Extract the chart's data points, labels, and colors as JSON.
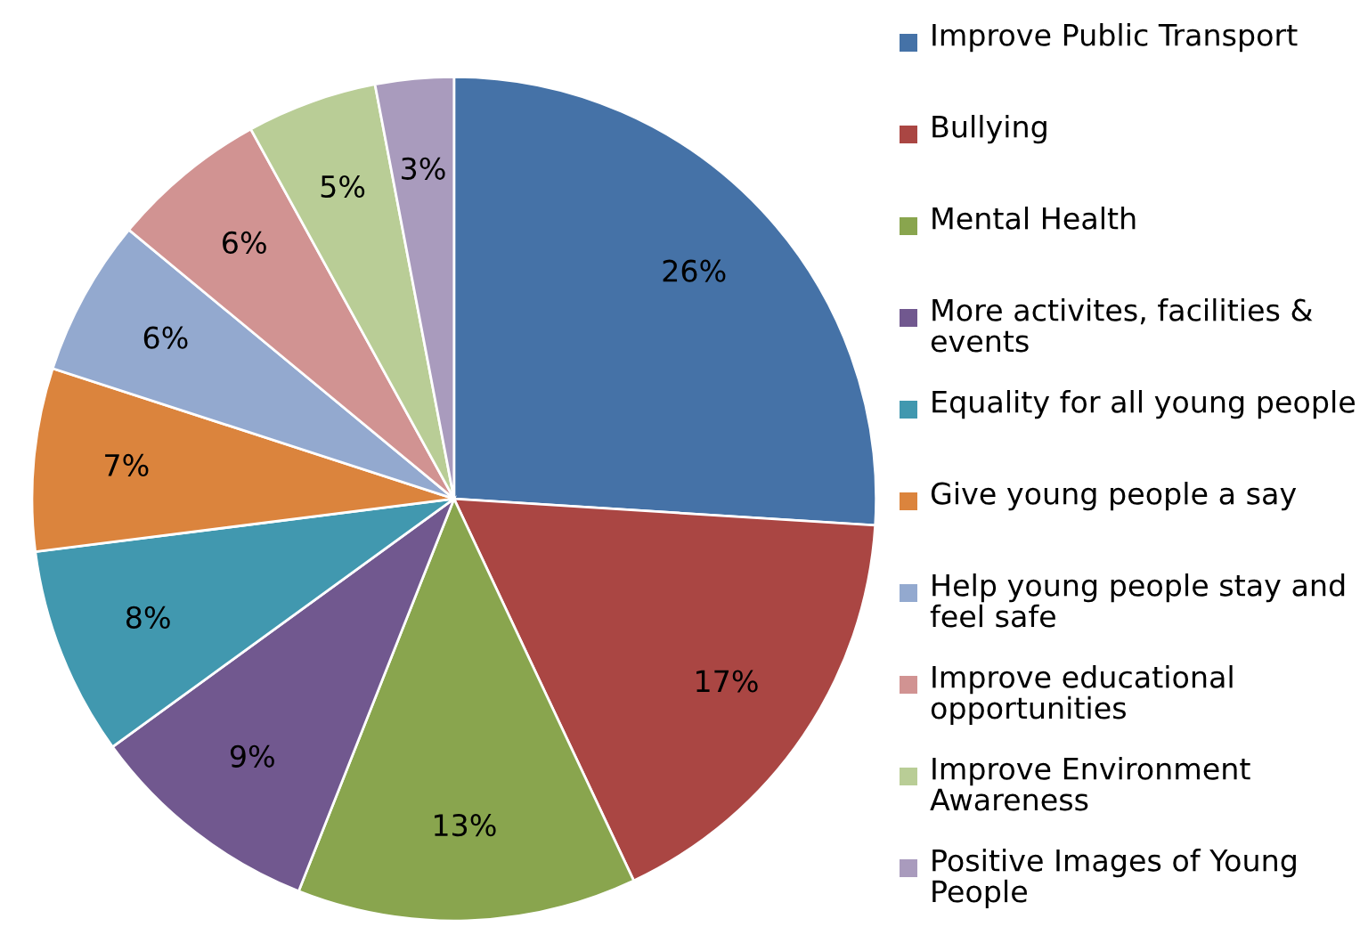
{
  "chart_data": {
    "type": "pie",
    "categories": [
      "Improve Public Transport",
      "Bullying",
      "Mental Health",
      "More activites, facilities & events",
      "Equality for all young people",
      "Give young people a say",
      "Help young people stay and feel safe",
      "Improve educational opportunities",
      "Improve Environment Awareness",
      "Positive Images of Young People"
    ],
    "values": [
      26,
      17,
      13,
      9,
      8,
      7,
      6,
      6,
      5,
      3
    ],
    "colors": [
      "#4572a7",
      "#aa4643",
      "#89a54e",
      "#71588f",
      "#4198af",
      "#db843d",
      "#93a9cf",
      "#d19392",
      "#b9cd96",
      "#a99bbd"
    ],
    "value_labels": [
      "26%",
      "17%",
      "13%",
      "9%",
      "8%",
      "7%",
      "6%",
      "6%",
      "5%",
      "3%"
    ],
    "legend": "right"
  }
}
